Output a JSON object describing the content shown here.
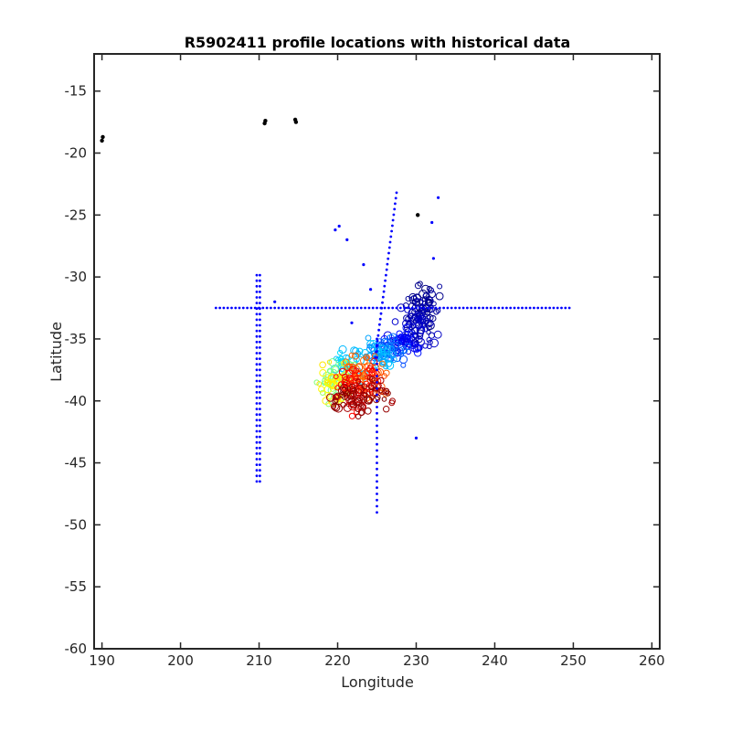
{
  "chart_data": {
    "type": "scatter",
    "title": "R5902411 profile locations with historical data",
    "xlabel": "Longitude",
    "ylabel": "Latitude",
    "xlim": [
      189,
      261
    ],
    "ylim": [
      -60,
      -12
    ],
    "xticks": [
      190,
      200,
      210,
      220,
      230,
      240,
      250,
      260
    ],
    "yticks": [
      -15,
      -20,
      -25,
      -30,
      -35,
      -40,
      -45,
      -50,
      -55,
      -60
    ],
    "grid": false,
    "legend": "none",
    "colors": {
      "historical_dots": "#0000ff",
      "black_points": "#000000",
      "trajectory_colormap": [
        "#00008f",
        "#0000ff",
        "#0080ff",
        "#00ffff",
        "#80ff80",
        "#ffff00",
        "#ff8000",
        "#ff0000",
        "#800000"
      ]
    },
    "historical_lines": [
      {
        "type": "horizontal",
        "y": -32.5,
        "x_from": 204.5,
        "x_to": 249.5,
        "step": 0.5
      },
      {
        "type": "vertical",
        "x": 209.7,
        "y_from": -46.5,
        "y_to": -29.7,
        "step": 0.45
      },
      {
        "type": "vertical",
        "x": 210.1,
        "y_from": -46.5,
        "y_to": -29.7,
        "step": 0.45
      },
      {
        "type": "vertical",
        "x": 225.0,
        "y_from": -49.0,
        "y_to": -35.0,
        "step": 0.5
      },
      {
        "type": "diagonal",
        "x_from": 224.8,
        "y_from": -36.5,
        "x_to": 227.5,
        "y_to": -23.2,
        "step": 0.45
      }
    ],
    "historical_points": [
      {
        "x": 219.7,
        "y": -26.2
      },
      {
        "x": 220.2,
        "y": -25.9
      },
      {
        "x": 221.2,
        "y": -27.0
      },
      {
        "x": 223.3,
        "y": -29.0
      },
      {
        "x": 224.2,
        "y": -31.0
      },
      {
        "x": 212.0,
        "y": -32.0
      },
      {
        "x": 221.8,
        "y": -33.7
      },
      {
        "x": 232.0,
        "y": -25.6
      },
      {
        "x": 232.8,
        "y": -23.6
      },
      {
        "x": 232.2,
        "y": -28.5
      },
      {
        "x": 230.0,
        "y": -43.0
      }
    ],
    "black_points": [
      {
        "x": 190.0,
        "y": -19.0
      },
      {
        "x": 190.1,
        "y": -18.7
      },
      {
        "x": 210.7,
        "y": -17.6
      },
      {
        "x": 210.8,
        "y": -17.4
      },
      {
        "x": 214.7,
        "y": -17.5
      },
      {
        "x": 214.6,
        "y": -17.3
      },
      {
        "x": 230.2,
        "y": -25.0
      }
    ],
    "float_trajectory_clusters": [
      {
        "x": 231.0,
        "y": -32.5,
        "sx": 1.0,
        "sy": 0.9,
        "n": 60,
        "c": 0.02
      },
      {
        "x": 230.0,
        "y": -34.0,
        "sx": 1.0,
        "sy": 0.8,
        "n": 60,
        "c": 0.06
      },
      {
        "x": 228.5,
        "y": -35.3,
        "sx": 1.0,
        "sy": 0.5,
        "n": 45,
        "c": 0.12
      },
      {
        "x": 226.5,
        "y": -35.8,
        "sx": 1.2,
        "sy": 0.6,
        "n": 45,
        "c": 0.22
      },
      {
        "x": 225.0,
        "y": -36.3,
        "sx": 1.3,
        "sy": 0.6,
        "n": 40,
        "c": 0.3
      },
      {
        "x": 221.5,
        "y": -37.0,
        "sx": 1.0,
        "sy": 0.6,
        "n": 30,
        "c": 0.33
      },
      {
        "x": 219.5,
        "y": -38.5,
        "sx": 1.2,
        "sy": 0.9,
        "n": 40,
        "c": 0.5
      },
      {
        "x": 219.5,
        "y": -38.8,
        "sx": 1.0,
        "sy": 0.8,
        "n": 35,
        "c": 0.63
      },
      {
        "x": 223.5,
        "y": -38.0,
        "sx": 1.3,
        "sy": 0.8,
        "n": 60,
        "c": 0.78
      },
      {
        "x": 222.5,
        "y": -38.8,
        "sx": 1.5,
        "sy": 0.9,
        "n": 60,
        "c": 0.87
      },
      {
        "x": 223.0,
        "y": -39.6,
        "sx": 1.6,
        "sy": 0.7,
        "n": 70,
        "c": 0.98
      }
    ]
  }
}
